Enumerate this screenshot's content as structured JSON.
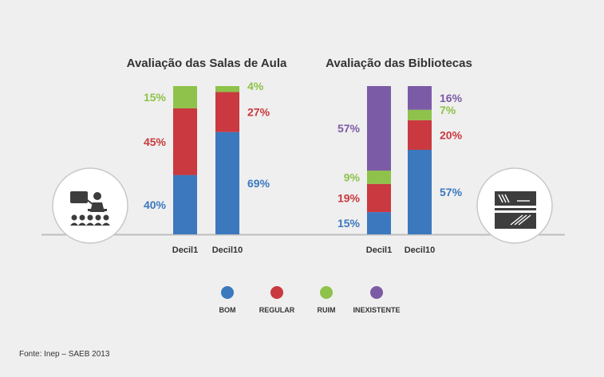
{
  "source": "Fonte: Inep – SAEB 2013",
  "colors": {
    "BOM": "#3b78be",
    "REGULAR": "#c9393f",
    "RUIM": "#8ec24a",
    "INEXISTENTE": "#7c5ba6"
  },
  "legend": [
    "BOM",
    "REGULAR",
    "RUIM",
    "INEXISTENTE"
  ],
  "icons": [
    "classroom-icon",
    "library-books-icon"
  ],
  "chart_data": [
    {
      "type": "bar",
      "stacked": true,
      "title": "Avaliação das Salas de Aula",
      "categories": [
        "Decil1",
        "Decil10"
      ],
      "series": [
        {
          "name": "BOM",
          "values": [
            40,
            69
          ]
        },
        {
          "name": "REGULAR",
          "values": [
            45,
            27
          ]
        },
        {
          "name": "RUIM",
          "values": [
            15,
            4
          ]
        }
      ],
      "labels": [
        [
          "40%",
          "45%",
          "15%"
        ],
        [
          "69%",
          "27%",
          "4%"
        ]
      ],
      "ylim": [
        0,
        100
      ],
      "grid": false
    },
    {
      "type": "bar",
      "stacked": true,
      "title": "Avaliação das Bibliotecas",
      "categories": [
        "Decil1",
        "Decil10"
      ],
      "series": [
        {
          "name": "BOM",
          "values": [
            15,
            57
          ]
        },
        {
          "name": "REGULAR",
          "values": [
            19,
            20
          ]
        },
        {
          "name": "RUIM",
          "values": [
            9,
            7
          ]
        },
        {
          "name": "INEXISTENTE",
          "values": [
            57,
            16
          ]
        }
      ],
      "labels": [
        [
          "15%",
          "19%",
          "9%",
          "57%"
        ],
        [
          "57%",
          "20%",
          "7%",
          "16%"
        ]
      ],
      "ylim": [
        0,
        100
      ],
      "grid": false
    }
  ]
}
